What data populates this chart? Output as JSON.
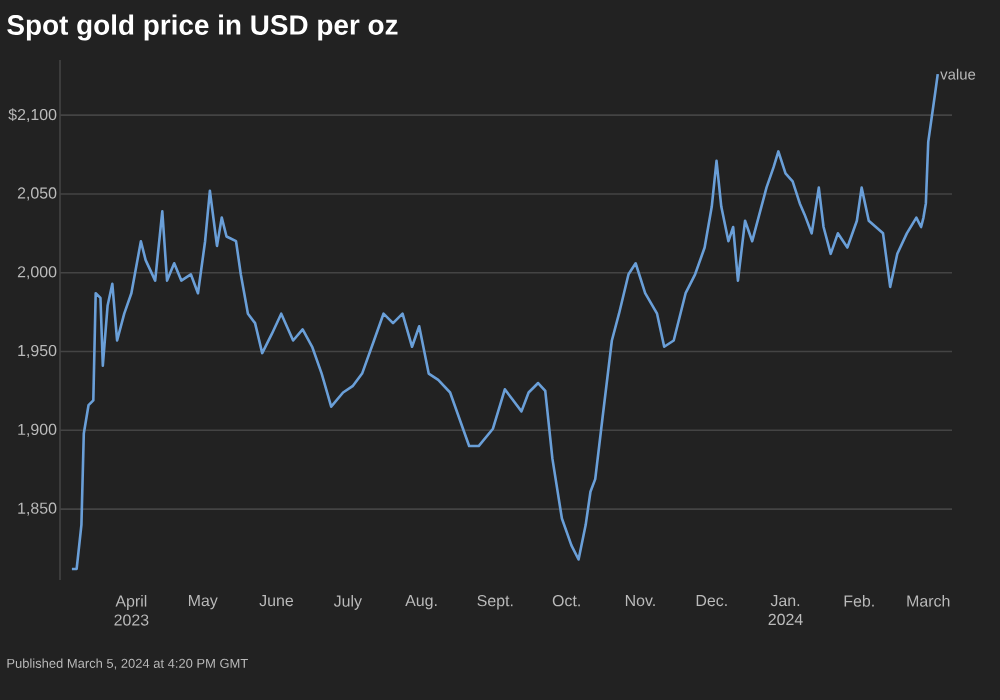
{
  "chart_data": {
    "type": "line",
    "title": "Spot gold price in USD per oz",
    "annotations": [
      "Published March 5, 2024 at 4:20 PM GMT"
    ],
    "xlim": [
      "2023-03-02",
      "2024-03-11"
    ],
    "ylim": [
      1805,
      2135
    ],
    "xticks": [
      {
        "value": "2023-04-01",
        "label": "April 2023"
      },
      {
        "value": "2023-05-01",
        "label": "May"
      },
      {
        "value": "2023-06-01",
        "label": "June"
      },
      {
        "value": "2023-07-01",
        "label": "July"
      },
      {
        "value": "2023-08-01",
        "label": "Aug."
      },
      {
        "value": "2023-09-01",
        "label": "Sept."
      },
      {
        "value": "2023-10-01",
        "label": "Oct."
      },
      {
        "value": "2023-11-01",
        "label": "Nov."
      },
      {
        "value": "2023-12-01",
        "label": "Dec."
      },
      {
        "value": "2024-01-01",
        "label": "Jan. 2024"
      },
      {
        "value": "2024-02-01",
        "label": "Feb."
      },
      {
        "value": "2024-03-01",
        "label": "March"
      }
    ],
    "yticks": [
      {
        "value": 1850,
        "label": "1,850"
      },
      {
        "value": 1900,
        "label": "1,900"
      },
      {
        "value": 1950,
        "label": "1,950"
      },
      {
        "value": 2000,
        "label": "2,000"
      },
      {
        "value": 2050,
        "label": "2,050"
      },
      {
        "value": 2100,
        "label": "$2,100"
      }
    ],
    "grid": "y",
    "marker": "none",
    "line_style": "solid",
    "series": [
      {
        "name": "value",
        "color": "#6a9fd8",
        "x": [
          "2023-03-07",
          "2023-03-09",
          "2023-03-11",
          "2023-03-12",
          "2023-03-14",
          "2023-03-16",
          "2023-03-17",
          "2023-03-19",
          "2023-03-20",
          "2023-03-22",
          "2023-03-24",
          "2023-03-26",
          "2023-03-29",
          "2023-04-01",
          "2023-04-05",
          "2023-04-07",
          "2023-04-11",
          "2023-04-14",
          "2023-04-16",
          "2023-04-19",
          "2023-04-22",
          "2023-04-26",
          "2023-04-29",
          "2023-05-02",
          "2023-05-04",
          "2023-05-07",
          "2023-05-09",
          "2023-05-11",
          "2023-05-15",
          "2023-05-17",
          "2023-05-20",
          "2023-05-23",
          "2023-05-26",
          "2023-05-30",
          "2023-06-03",
          "2023-06-08",
          "2023-06-12",
          "2023-06-16",
          "2023-06-20",
          "2023-06-24",
          "2023-06-29",
          "2023-07-03",
          "2023-07-07",
          "2023-07-12",
          "2023-07-16",
          "2023-07-20",
          "2023-07-24",
          "2023-07-28",
          "2023-07-31",
          "2023-08-04",
          "2023-08-08",
          "2023-08-13",
          "2023-08-17",
          "2023-08-21",
          "2023-08-25",
          "2023-08-31",
          "2023-09-05",
          "2023-09-08",
          "2023-09-12",
          "2023-09-15",
          "2023-09-19",
          "2023-09-22",
          "2023-09-25",
          "2023-09-29",
          "2023-10-03",
          "2023-10-06",
          "2023-10-09",
          "2023-10-11",
          "2023-10-13",
          "2023-10-16",
          "2023-10-20",
          "2023-10-23",
          "2023-10-27",
          "2023-10-30",
          "2023-11-03",
          "2023-11-08",
          "2023-11-11",
          "2023-11-15",
          "2023-11-20",
          "2023-11-24",
          "2023-11-28",
          "2023-12-01",
          "2023-12-03",
          "2023-12-05",
          "2023-12-08",
          "2023-12-10",
          "2023-12-12",
          "2023-12-15",
          "2023-12-18",
          "2023-12-21",
          "2023-12-24",
          "2023-12-27",
          "2023-12-29",
          "2024-01-01",
          "2024-01-04",
          "2024-01-07",
          "2024-01-09",
          "2024-01-12",
          "2024-01-15",
          "2024-01-17",
          "2024-01-20",
          "2024-01-23",
          "2024-01-27",
          "2024-01-31",
          "2024-02-02",
          "2024-02-05",
          "2024-02-08",
          "2024-02-11",
          "2024-02-14",
          "2024-02-17",
          "2024-02-21",
          "2024-02-25",
          "2024-02-27",
          "2024-02-28",
          "2024-02-29",
          "2024-03-01",
          "2024-03-04",
          "2024-03-05"
        ],
        "values": [
          1812,
          1812,
          1840,
          1898,
          1916,
          1919,
          1987,
          1984,
          1941,
          1979,
          1993,
          1957,
          1974,
          1987,
          2020,
          2008,
          1995,
          2039,
          1995,
          2006,
          1995,
          1999,
          1987,
          2020,
          2052,
          2017,
          2035,
          2023,
          2020,
          1999,
          1974,
          1968,
          1949,
          1961,
          1974,
          1957,
          1964,
          1953,
          1936,
          1915,
          1924,
          1928,
          1936,
          1957,
          1974,
          1968,
          1974,
          1953,
          1966,
          1936,
          1932,
          1924,
          1907,
          1890,
          1890,
          1901,
          1926,
          1920,
          1912,
          1924,
          1930,
          1925,
          1882,
          1844,
          1827,
          1818,
          1840,
          1861,
          1869,
          1907,
          1957,
          1974,
          1999,
          2006,
          1987,
          1974,
          1953,
          1957,
          1987,
          1999,
          2016,
          2042,
          2071,
          2042,
          2020,
          2029,
          1995,
          2033,
          2020,
          2037,
          2054,
          2067,
          2077,
          2063,
          2058,
          2044,
          2037,
          2025,
          2054,
          2029,
          2012,
          2025,
          2016,
          2033,
          2054,
          2033,
          2029,
          2025,
          1991,
          2012,
          2025,
          2035,
          2029,
          2035,
          2044,
          2083,
          2115,
          2126
        ]
      }
    ]
  }
}
